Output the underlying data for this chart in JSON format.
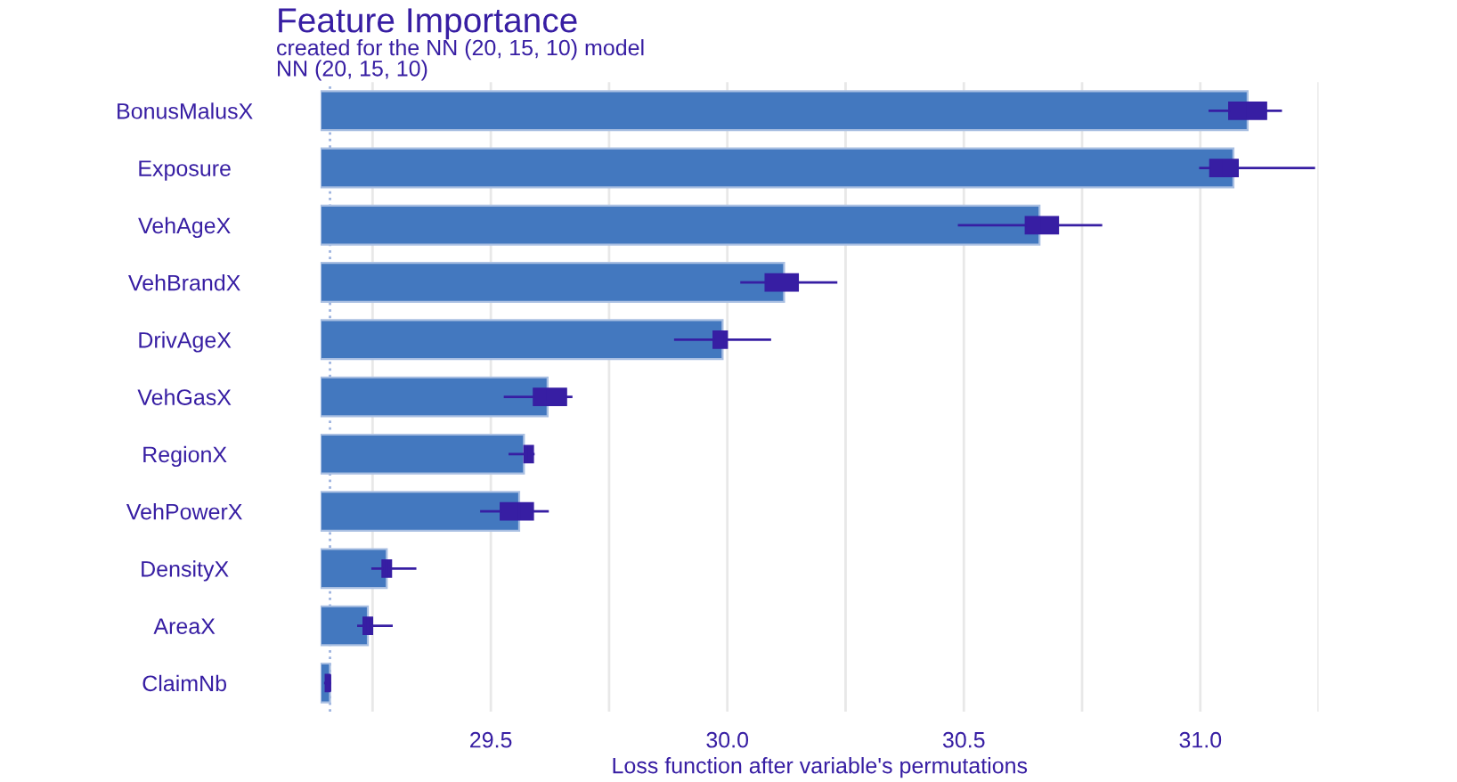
{
  "chart_data": {
    "type": "bar",
    "orientation": "horizontal",
    "title": "Feature Importance",
    "subtitle": "created for the NN (20, 15, 10) model\nNN (20, 15, 10)",
    "xlabel": "Loss function after variable's permutations",
    "categories": [
      "BonusMalusX",
      "Exposure",
      "VehAgeX",
      "VehBrandX",
      "DrivAgeX",
      "VehGasX",
      "RegionX",
      "VehPowerX",
      "DensityX",
      "AreaX",
      "ClaimNb"
    ],
    "series": [
      {
        "color": "#4378bf",
        "values": [
          31.1,
          31.07,
          30.66,
          30.12,
          29.99,
          29.62,
          29.57,
          29.56,
          29.28,
          29.24,
          29.16
        ]
      },
      {
        "type": "box",
        "color": "#371ea3",
        "boxes": [
          {
            "low": 31.02,
            "q1": 31.06,
            "median": 31.1,
            "q3": 31.14,
            "high": 31.17
          },
          {
            "low": 31.0,
            "q1": 31.02,
            "median": 31.05,
            "q3": 31.08,
            "high": 31.24
          },
          {
            "low": 30.49,
            "q1": 30.63,
            "median": 30.66,
            "q3": 30.7,
            "high": 30.79
          },
          {
            "low": 30.03,
            "q1": 30.08,
            "median": 30.12,
            "q3": 30.15,
            "high": 30.23
          },
          {
            "low": 29.89,
            "q1": 29.97,
            "median": 29.99,
            "q3": 30.0,
            "high": 30.09
          },
          {
            "low": 29.53,
            "q1": 29.59,
            "median": 29.62,
            "q3": 29.66,
            "high": 29.67
          },
          {
            "low": 29.54,
            "q1": 29.57,
            "median": 29.58,
            "q3": 29.59,
            "high": 29.59
          },
          {
            "low": 29.48,
            "q1": 29.52,
            "median": 29.56,
            "q3": 29.59,
            "high": 29.62
          },
          {
            "low": 29.25,
            "q1": 29.27,
            "median": 29.28,
            "q3": 29.29,
            "high": 29.34
          },
          {
            "low": 29.22,
            "q1": 29.23,
            "median": 29.24,
            "q3": 29.25,
            "high": 29.29
          },
          {
            "low": 29.15,
            "q1": 29.15,
            "median": 29.16,
            "q3": 29.16,
            "high": 29.16
          }
        ]
      }
    ],
    "ref_lines": [
      {
        "axis": "x",
        "value": 29.16,
        "color": "#9db3e0",
        "line_style": "dotted"
      }
    ],
    "xlim": [
      29.14,
      31.25
    ],
    "xticks": [
      {
        "value": 29.25,
        "label": null
      },
      29.5,
      {
        "value": 29.75,
        "label": null
      },
      {
        "value": 30,
        "label": "30.0"
      },
      {
        "value": 30.25,
        "label": null
      },
      30.5,
      {
        "value": 30.75,
        "label": null
      },
      {
        "value": 31,
        "label": "31.0"
      },
      {
        "value": 31.25,
        "label": null
      }
    ],
    "grid": "x"
  }
}
